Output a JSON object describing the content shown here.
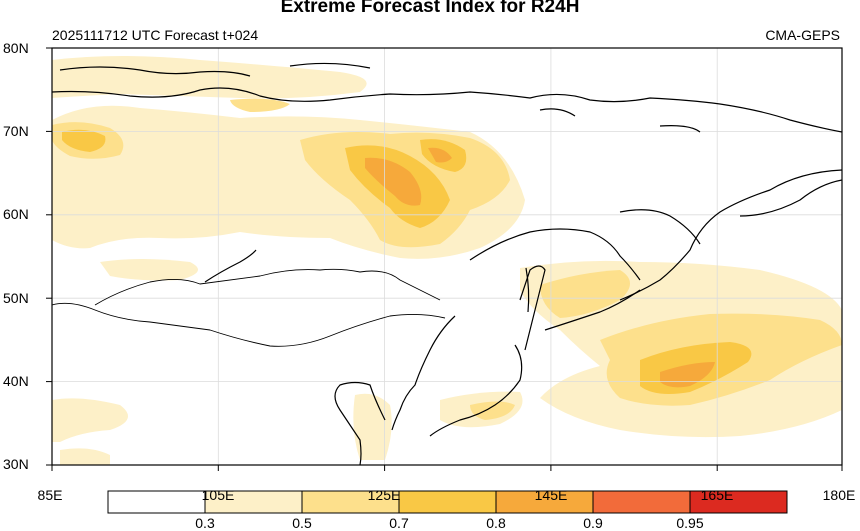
{
  "title": "Extreme Forecast Index for R24H",
  "subtitle_left": "2025111712 UTC Forecast t+024",
  "subtitle_right": "CMA-GEPS",
  "map": {
    "lon_range": [
      85,
      180
    ],
    "lat_range": [
      30,
      80
    ],
    "lat_ticks": [
      "30N",
      "40N",
      "50N",
      "60N",
      "70N",
      "80N"
    ],
    "lon_ticks": [
      "85E",
      "105E",
      "125E",
      "145E",
      "165E",
      "180E"
    ],
    "grid": true
  },
  "colorbar": {
    "levels": [
      "0.3",
      "0.5",
      "0.7",
      "0.8",
      "0.9",
      "0.95"
    ],
    "colors": [
      "#ffffff",
      "#fdf0c8",
      "#fde08c",
      "#f9c845",
      "#f6a93b",
      "#f26b3a",
      "#dc2a20"
    ]
  }
}
